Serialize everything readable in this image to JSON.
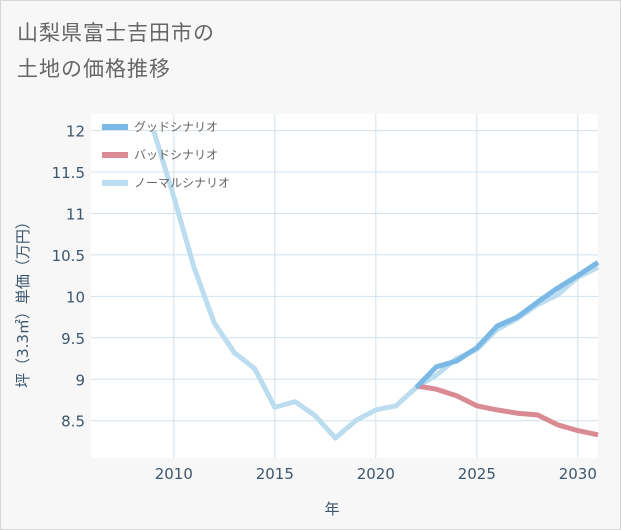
{
  "title_lines": [
    "山梨県富士吉田市の",
    "土地の価格推移"
  ],
  "chart_data": {
    "type": "line",
    "title": "山梨県富士吉田市の土地の価格推移",
    "xlabel": "年",
    "ylabel": "坪（3.3㎡）単価（万円）",
    "xlim": [
      2005.9,
      2031
    ],
    "ylim": [
      8.05,
      12.2
    ],
    "x_ticks": [
      2010,
      2015,
      2020,
      2025,
      2030
    ],
    "y_ticks": [
      8.5,
      9,
      9.5,
      10,
      10.5,
      11,
      11.5,
      12
    ],
    "grid": true,
    "legend_position": "top-left",
    "series": [
      {
        "name": "グッドシナリオ",
        "color": "#7ab8e6",
        "x": [
          2022,
          2023,
          2024,
          2025,
          2026,
          2027,
          2028,
          2029,
          2030,
          2031
        ],
        "y": [
          8.9,
          9.15,
          9.22,
          9.38,
          9.64,
          9.75,
          9.93,
          10.1,
          10.25,
          10.41
        ]
      },
      {
        "name": "バッドシナリオ",
        "color": "#d98a92",
        "x": [
          2022,
          2023,
          2024,
          2025,
          2026,
          2027,
          2028,
          2029,
          2030,
          2031
        ],
        "y": [
          8.92,
          8.88,
          8.8,
          8.68,
          8.63,
          8.59,
          8.57,
          8.45,
          8.38,
          8.33
        ]
      },
      {
        "name": "ノーマルシナリオ",
        "color": "#bcdcef",
        "x": [
          2009,
          2010,
          2011,
          2012,
          2013,
          2014,
          2015,
          2016,
          2017,
          2018,
          2019,
          2020,
          2021,
          2022,
          2023,
          2024,
          2025,
          2026,
          2027,
          2028,
          2029,
          2030,
          2031
        ],
        "y": [
          12.0,
          11.2,
          10.35,
          9.68,
          9.32,
          9.13,
          8.66,
          8.73,
          8.56,
          8.29,
          8.5,
          8.63,
          8.68,
          8.9,
          9.05,
          9.25,
          9.36,
          9.6,
          9.73,
          9.9,
          10.02,
          10.23,
          10.35
        ]
      }
    ]
  }
}
